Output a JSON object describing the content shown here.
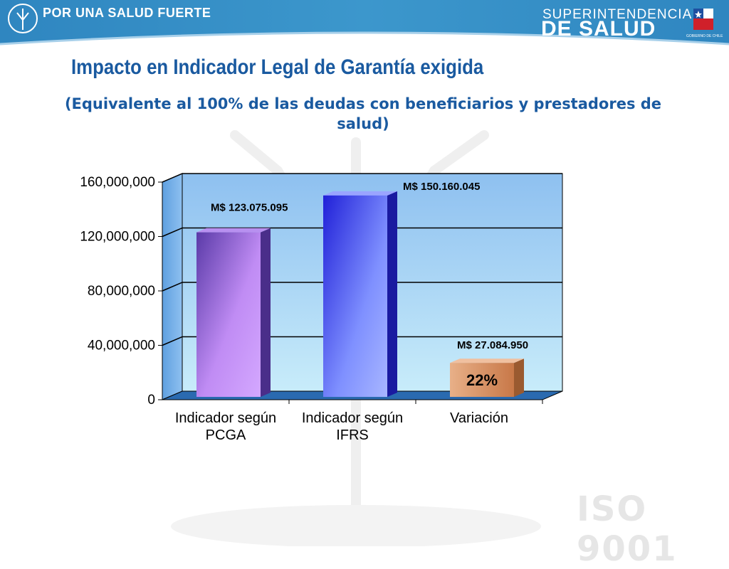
{
  "header": {
    "brand_left": "POR UNA SALUD FUERTE",
    "brand_right_line1": "SUPERINTENDENCIA",
    "brand_right_line2": "DE SALUD",
    "gov_label": "GOBIERNO DE CHILE",
    "bar_color": "#3a8fc4"
  },
  "slide": {
    "title": "Impacto en Indicador Legal de Garantía exigida",
    "subtitle": "(Equivalente al 100% de las deudas con beneficiarios y prestadores de salud)",
    "watermark": "ISO 9001"
  },
  "chart_data": {
    "type": "bar",
    "categories": [
      [
        "Indicador según",
        "PCGA"
      ],
      [
        "Indicador según",
        "IFRS"
      ],
      [
        "Variación"
      ]
    ],
    "values": [
      123075095,
      150160045,
      27084950
    ],
    "data_labels": [
      "M$ 123.075.095",
      "M$ 150.160.045",
      "M$ 27.084.950"
    ],
    "bar_annotation": {
      "index": 2,
      "text": "22%"
    },
    "ylim": [
      0,
      160000000
    ],
    "yticks": [
      0,
      40000000,
      80000000,
      120000000,
      160000000
    ],
    "ytick_labels": [
      "0",
      "40,000,000",
      "80,000,000",
      "120,000,000",
      "160,000,000"
    ],
    "grid": true,
    "colors": [
      "#9a6ad8",
      "#5a60f0",
      "#d88a58"
    ]
  }
}
